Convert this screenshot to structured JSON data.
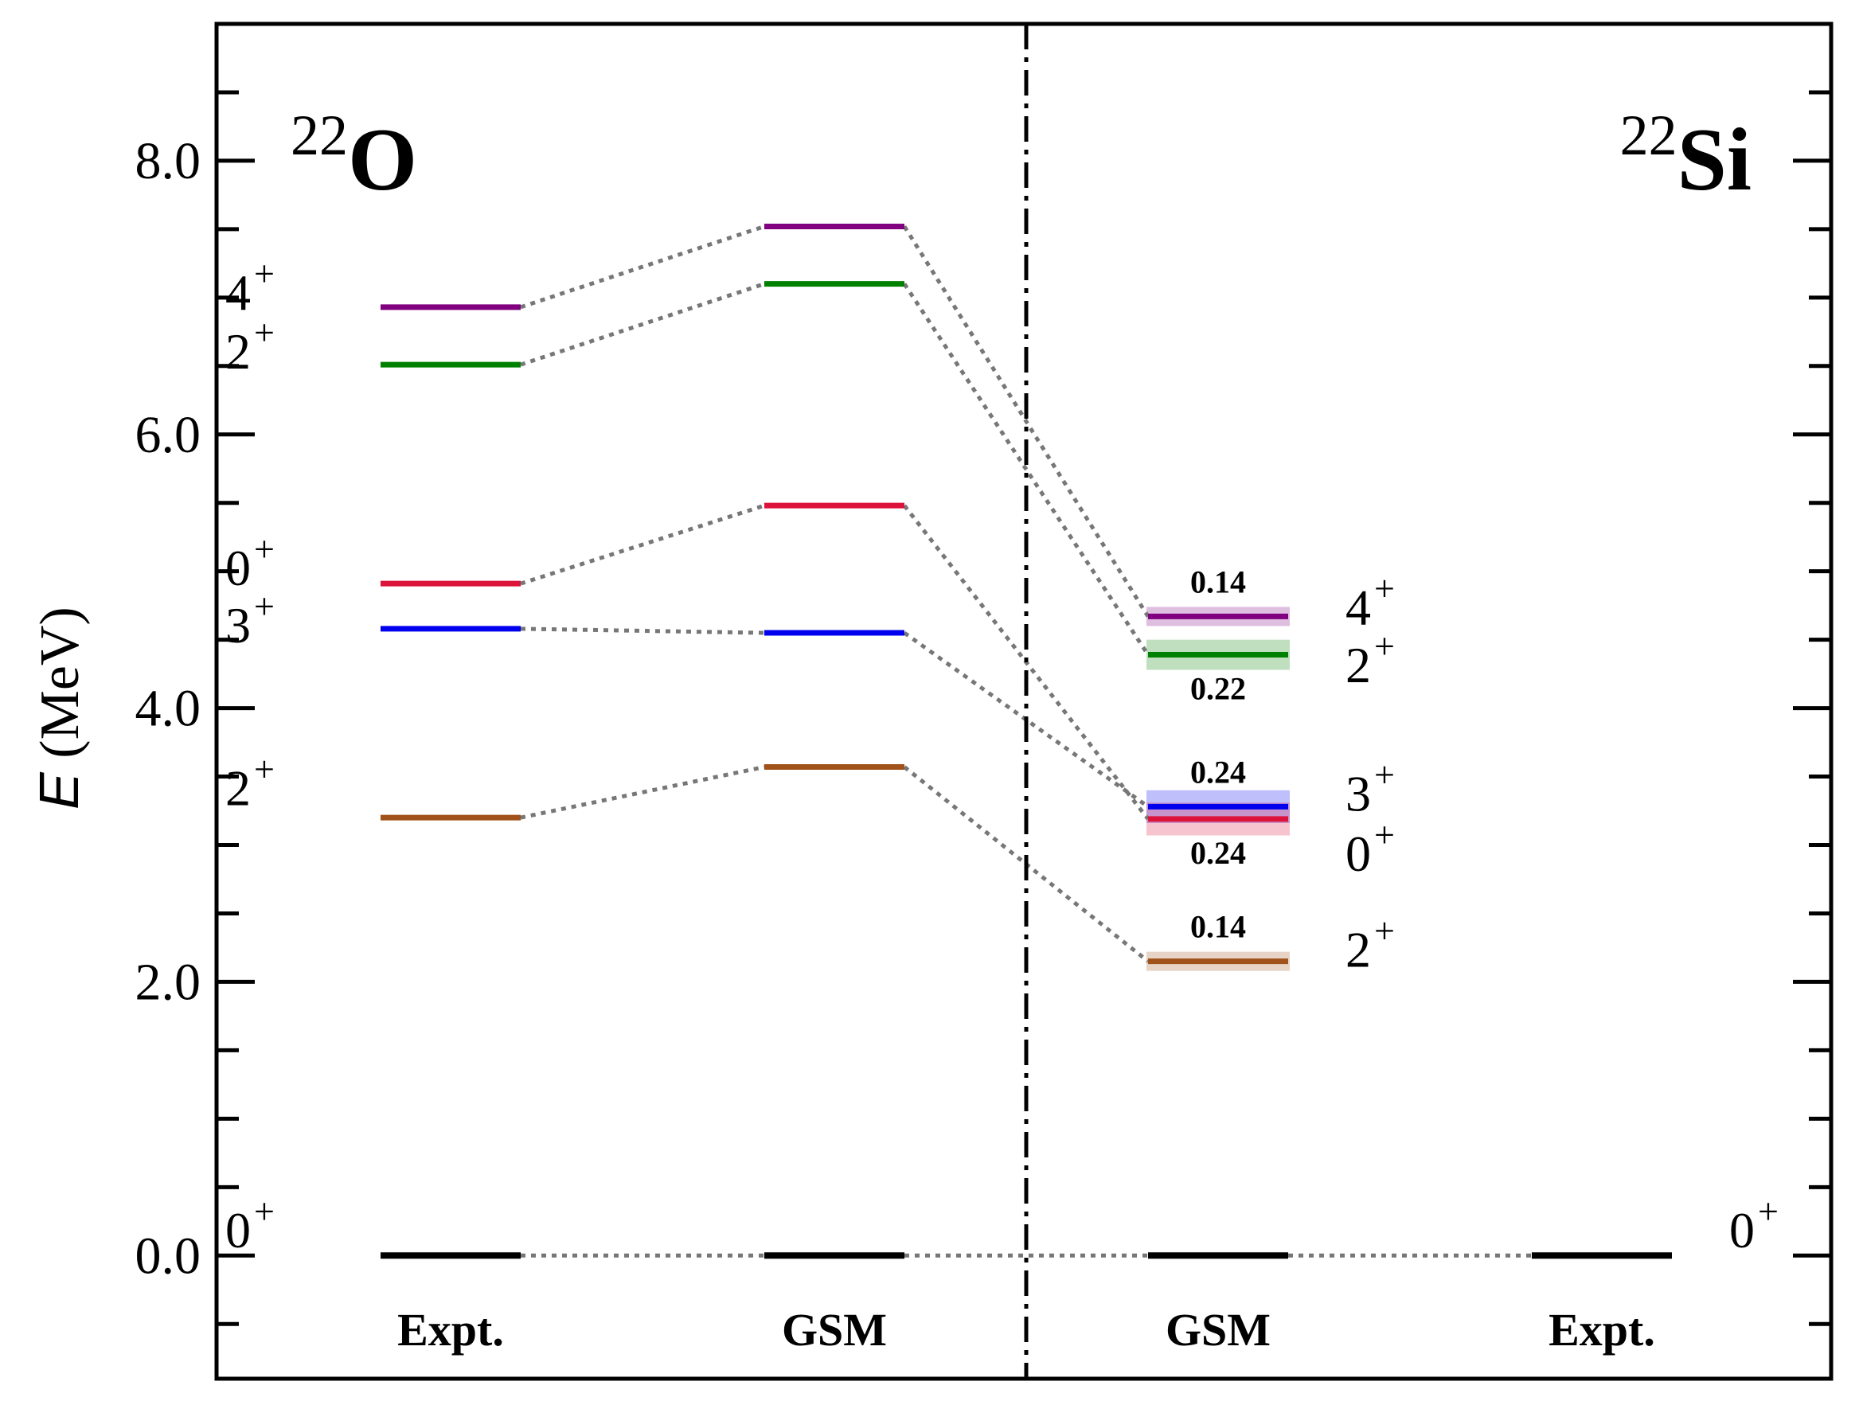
{
  "chart_data": {
    "type": "level-scheme",
    "ylabel": "E (MeV)",
    "ylabel_italic": "E",
    "ylabel_unit": " (MeV)",
    "ylim": [
      -0.9,
      9.0
    ],
    "yticks": [
      {
        "value": 0.0,
        "label": "0.0"
      },
      {
        "value": 2.0,
        "label": "2.0"
      },
      {
        "value": 4.0,
        "label": "4.0"
      },
      {
        "value": 6.0,
        "label": "6.0"
      },
      {
        "value": 8.0,
        "label": "8.0"
      }
    ],
    "minor_tick_step": 0.5,
    "panels": [
      {
        "mass": "22",
        "symbol": "O",
        "position": "left"
      },
      {
        "mass": "22",
        "symbol": "Si",
        "position": "right"
      }
    ],
    "columns": [
      {
        "id": "o-expt",
        "label": "Expt."
      },
      {
        "id": "o-gsm",
        "label": "GSM"
      },
      {
        "id": "si-gsm",
        "label": "GSM"
      },
      {
        "id": "si-expt",
        "label": "Expt."
      }
    ],
    "states": [
      {
        "id": "gs",
        "color": "#000000",
        "energies": {
          "o-expt": 0.0,
          "o-gsm": 0.0,
          "si-gsm": 0.0,
          "si-expt": 0.0
        }
      },
      {
        "id": "2p1",
        "color": "#A0521A",
        "energies": {
          "o-expt": 3.2,
          "o-gsm": 3.57,
          "si-gsm": 2.15
        }
      },
      {
        "id": "3p",
        "color": "#0000EE",
        "energies": {
          "o-expt": 4.58,
          "o-gsm": 4.55,
          "si-gsm": 3.28
        }
      },
      {
        "id": "0p2",
        "color": "#DC143C",
        "energies": {
          "o-expt": 4.91,
          "o-gsm": 5.48,
          "si-gsm": 3.19
        }
      },
      {
        "id": "2p2",
        "color": "#008000",
        "energies": {
          "o-expt": 6.51,
          "o-gsm": 7.1,
          "si-gsm": 4.39
        }
      },
      {
        "id": "4p",
        "color": "#800080",
        "energies": {
          "o-expt": 6.93,
          "o-gsm": 7.52,
          "si-gsm": 4.67
        }
      }
    ],
    "widths": [
      {
        "state": "4p",
        "value": 0.14,
        "label": "0.14",
        "label_pos": "above"
      },
      {
        "state": "2p2",
        "value": 0.22,
        "label": "0.22",
        "label_pos": "below"
      },
      {
        "state": "3p",
        "value": 0.24,
        "label": "0.24",
        "label_pos": "above"
      },
      {
        "state": "0p2",
        "value": 0.24,
        "label": "0.24",
        "label_pos": "below"
      },
      {
        "state": "2p1",
        "value": 0.14,
        "label": "0.14",
        "label_pos": "above"
      }
    ],
    "spin_labels": [
      {
        "column": "o-expt",
        "side": "left",
        "label": "4",
        "parity": "+",
        "energy": 7.05
      },
      {
        "column": "o-expt",
        "side": "left",
        "label": "2",
        "parity": "+",
        "energy": 6.62
      },
      {
        "column": "o-expt",
        "side": "left",
        "label": "0",
        "parity": "+",
        "energy": 5.04
      },
      {
        "column": "o-expt",
        "side": "left",
        "label": "3",
        "parity": "+",
        "energy": 4.62
      },
      {
        "column": "o-expt",
        "side": "left",
        "label": "2",
        "parity": "+",
        "energy": 3.43
      },
      {
        "column": "o-expt",
        "side": "left",
        "label": "0",
        "parity": "+",
        "energy": 0.2
      },
      {
        "column": "si-gsm",
        "side": "right",
        "label": "4",
        "parity": "+",
        "energy": 4.75
      },
      {
        "column": "si-gsm",
        "side": "right",
        "label": "2",
        "parity": "+",
        "energy": 4.33
      },
      {
        "column": "si-gsm",
        "side": "right",
        "label": "3",
        "parity": "+",
        "energy": 3.39
      },
      {
        "column": "si-gsm",
        "side": "right",
        "label": "0",
        "parity": "+",
        "energy": 2.95
      },
      {
        "column": "si-gsm",
        "side": "right",
        "label": "2",
        "parity": "+",
        "energy": 2.25
      },
      {
        "column": "si-expt",
        "side": "right",
        "label": "0",
        "parity": "+",
        "energy": 0.2
      }
    ],
    "connectors": "dotted gray lines between the same state in adjacent columns",
    "separator": "dash-dot vertical line between the 22O and 22Si panels",
    "grid": false
  }
}
